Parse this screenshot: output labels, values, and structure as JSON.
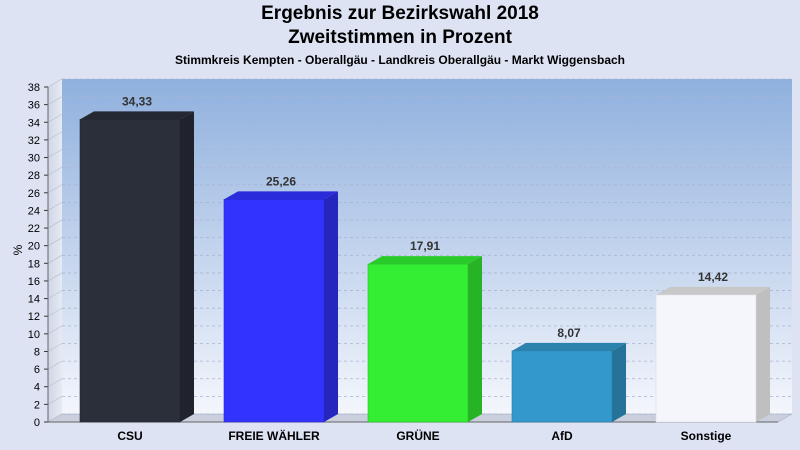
{
  "chart_data": {
    "type": "bar",
    "title": "Ergebnis zur Bezirkswahl 2018",
    "subtitle_line2": "Zweitstimmen in Prozent",
    "subtitle": "Stimmkreis Kempten - Oberallgäu - Landkreis Oberallgäu - Markt Wiggensbach",
    "ylabel": "%",
    "ylim": [
      0,
      38
    ],
    "yticks": [
      0,
      2,
      4,
      6,
      8,
      10,
      12,
      14,
      16,
      18,
      20,
      22,
      24,
      26,
      28,
      30,
      32,
      34,
      36,
      38
    ],
    "categories": [
      "CSU",
      "FREIE WÄHLER",
      "GRÜNE",
      "AfD",
      "Sonstige"
    ],
    "values": [
      34.33,
      25.26,
      17.91,
      8.07,
      14.42
    ],
    "value_labels": [
      "34,33",
      "25,26",
      "17,91",
      "8,07",
      "14,42"
    ],
    "colors": [
      "#2a2f3a",
      "#3333ff",
      "#33ee33",
      "#3399cc",
      "#f4f6fb"
    ],
    "grid": true
  }
}
